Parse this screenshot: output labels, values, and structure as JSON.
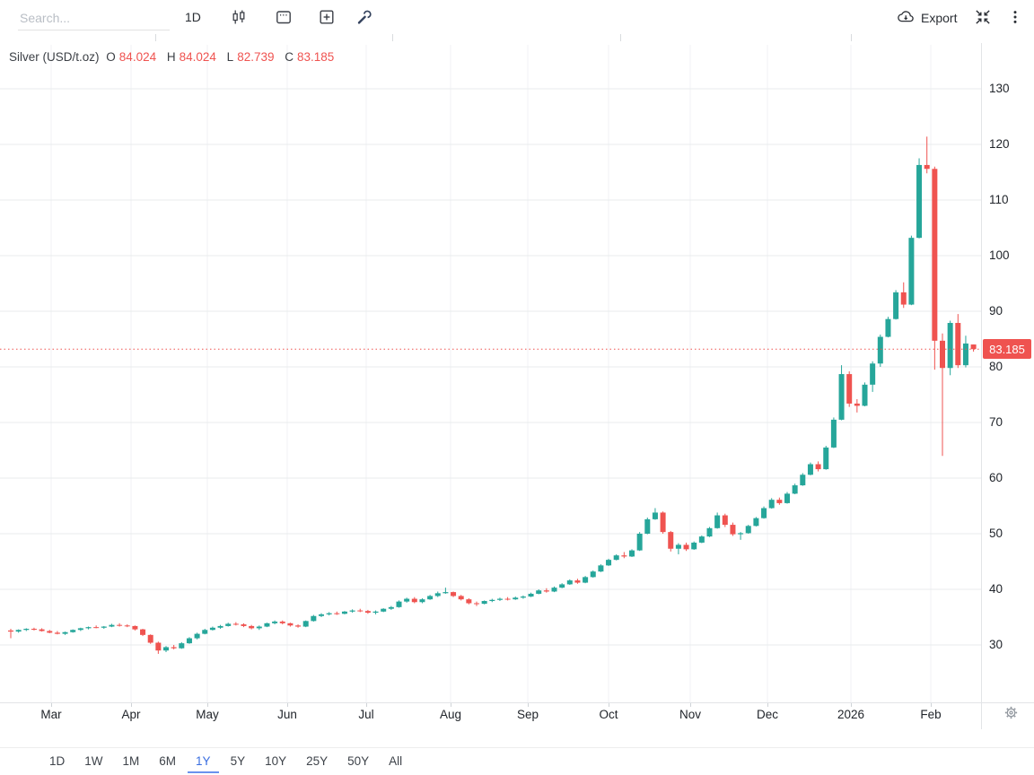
{
  "toolbar": {
    "search_placeholder": "Search...",
    "interval_label": "1D",
    "export_label": "Export"
  },
  "legend": {
    "symbol": "Silver (USD/t.oz)",
    "o_label": "O",
    "open": "84.024",
    "h_label": "H",
    "high": "84.024",
    "l_label": "L",
    "low": "82.739",
    "c_label": "C",
    "close": "83.185"
  },
  "price_label": "83.185",
  "colors": {
    "up": "#26a69a",
    "down": "#ef5350",
    "price_line": "#ef5350",
    "accent_blue": "#3a6ee0",
    "grid_h": "#e9ebed",
    "grid_v": "#f1f2f4"
  },
  "range_tabs": {
    "items": [
      "1D",
      "1W",
      "1M",
      "6M",
      "1Y",
      "5Y",
      "10Y",
      "25Y",
      "50Y",
      "All"
    ],
    "selected": "1Y"
  },
  "chart_data": {
    "type": "candlestick",
    "title": "Silver (USD/t.oz)",
    "interval": "1D",
    "range": "1Y",
    "last_price": 83.185,
    "y_axis": {
      "ticks": [
        130,
        120,
        110,
        100,
        90,
        80,
        70,
        60,
        50,
        40,
        30
      ],
      "min": 26,
      "max": 138
    },
    "x_axis": {
      "labels": [
        "Mar",
        "Apr",
        "May",
        "Jun",
        "Jul",
        "Aug",
        "Sep",
        "Oct",
        "Nov",
        "Dec",
        "2026",
        "Feb"
      ],
      "positions": [
        57,
        146,
        231,
        320,
        408,
        502,
        588,
        678,
        769,
        855,
        948,
        1037
      ]
    },
    "candles_format": [
      "open",
      "high",
      "low",
      "close"
    ],
    "candles": [
      [
        32.6,
        32.9,
        31.2,
        32.4
      ],
      [
        32.4,
        32.8,
        32.2,
        32.7
      ],
      [
        32.7,
        33.0,
        32.5,
        32.9
      ],
      [
        32.9,
        33.1,
        32.6,
        32.8
      ],
      [
        32.8,
        33.0,
        32.4,
        32.5
      ],
      [
        32.5,
        32.7,
        32.1,
        32.2
      ],
      [
        32.2,
        32.5,
        31.9,
        32.0
      ],
      [
        32.0,
        32.4,
        31.8,
        32.3
      ],
      [
        32.3,
        32.8,
        32.2,
        32.7
      ],
      [
        32.7,
        33.1,
        32.5,
        33.0
      ],
      [
        33.0,
        33.3,
        32.8,
        33.2
      ],
      [
        33.2,
        33.5,
        33.0,
        33.1
      ],
      [
        33.1,
        33.4,
        32.9,
        33.3
      ],
      [
        33.3,
        33.8,
        33.2,
        33.6
      ],
      [
        33.6,
        33.9,
        33.3,
        33.5
      ],
      [
        33.5,
        33.7,
        33.2,
        33.4
      ],
      [
        33.4,
        33.5,
        32.6,
        32.8
      ],
      [
        32.8,
        32.9,
        31.6,
        31.8
      ],
      [
        31.8,
        31.9,
        30.2,
        30.4
      ],
      [
        30.4,
        30.6,
        28.4,
        29.0
      ],
      [
        29.0,
        29.8,
        28.7,
        29.6
      ],
      [
        29.6,
        30.0,
        29.2,
        29.4
      ],
      [
        29.4,
        30.5,
        29.3,
        30.3
      ],
      [
        30.3,
        31.4,
        30.2,
        31.2
      ],
      [
        31.2,
        32.2,
        31.0,
        32.0
      ],
      [
        32.0,
        32.9,
        31.9,
        32.7
      ],
      [
        32.7,
        33.3,
        32.6,
        33.1
      ],
      [
        33.1,
        33.6,
        32.9,
        33.4
      ],
      [
        33.4,
        34.0,
        33.3,
        33.8
      ],
      [
        33.8,
        34.1,
        33.5,
        33.7
      ],
      [
        33.7,
        33.9,
        33.2,
        33.4
      ],
      [
        33.4,
        33.6,
        32.8,
        33.0
      ],
      [
        33.0,
        33.5,
        32.7,
        33.3
      ],
      [
        33.3,
        34.0,
        33.2,
        33.9
      ],
      [
        33.9,
        34.4,
        33.7,
        34.2
      ],
      [
        34.2,
        34.4,
        33.7,
        33.9
      ],
      [
        33.9,
        34.0,
        33.3,
        33.5
      ],
      [
        33.5,
        33.7,
        33.1,
        33.3
      ],
      [
        33.3,
        34.4,
        33.2,
        34.3
      ],
      [
        34.3,
        35.4,
        34.2,
        35.2
      ],
      [
        35.2,
        35.7,
        35.0,
        35.5
      ],
      [
        35.5,
        35.9,
        35.3,
        35.7
      ],
      [
        35.7,
        36.0,
        35.4,
        35.6
      ],
      [
        35.6,
        36.1,
        35.5,
        36.0
      ],
      [
        36.0,
        36.4,
        35.8,
        36.2
      ],
      [
        36.2,
        36.5,
        35.9,
        36.1
      ],
      [
        36.1,
        36.3,
        35.6,
        35.8
      ],
      [
        35.8,
        36.2,
        35.5,
        36.0
      ],
      [
        36.0,
        36.6,
        35.9,
        36.5
      ],
      [
        36.5,
        37.0,
        36.3,
        36.8
      ],
      [
        36.8,
        38.0,
        36.7,
        37.8
      ],
      [
        37.8,
        38.5,
        37.6,
        38.3
      ],
      [
        38.3,
        38.6,
        37.5,
        37.7
      ],
      [
        37.7,
        38.4,
        37.5,
        38.2
      ],
      [
        38.2,
        39.0,
        38.1,
        38.8
      ],
      [
        38.8,
        39.6,
        38.6,
        39.3
      ],
      [
        39.3,
        40.3,
        39.2,
        39.5
      ],
      [
        39.5,
        39.6,
        38.6,
        38.8
      ],
      [
        38.8,
        39.0,
        38.0,
        38.2
      ],
      [
        38.2,
        38.4,
        37.3,
        37.5
      ],
      [
        37.5,
        37.8,
        37.0,
        37.4
      ],
      [
        37.4,
        38.0,
        37.3,
        37.9
      ],
      [
        37.9,
        38.3,
        37.7,
        38.1
      ],
      [
        38.1,
        38.5,
        37.9,
        38.3
      ],
      [
        38.3,
        38.6,
        38.0,
        38.2
      ],
      [
        38.2,
        38.7,
        38.1,
        38.5
      ],
      [
        38.5,
        38.9,
        38.3,
        38.7
      ],
      [
        38.7,
        39.4,
        38.6,
        39.2
      ],
      [
        39.2,
        40.0,
        39.1,
        39.8
      ],
      [
        39.8,
        40.2,
        39.4,
        39.6
      ],
      [
        39.6,
        40.5,
        39.5,
        40.3
      ],
      [
        40.3,
        41.1,
        40.2,
        40.9
      ],
      [
        40.9,
        41.8,
        40.8,
        41.6
      ],
      [
        41.6,
        41.9,
        41.0,
        41.2
      ],
      [
        41.2,
        42.4,
        41.1,
        42.2
      ],
      [
        42.2,
        43.4,
        42.1,
        43.2
      ],
      [
        43.2,
        44.5,
        43.1,
        44.3
      ],
      [
        44.3,
        45.5,
        44.2,
        45.3
      ],
      [
        45.3,
        46.3,
        45.2,
        46.1
      ],
      [
        46.1,
        46.7,
        45.6,
        45.9
      ],
      [
        45.9,
        47.2,
        45.8,
        47.0
      ],
      [
        47.0,
        50.3,
        46.9,
        50.0
      ],
      [
        50.0,
        52.9,
        49.9,
        52.6
      ],
      [
        52.6,
        54.6,
        52.5,
        53.8
      ],
      [
        53.8,
        54.0,
        50.0,
        50.3
      ],
      [
        50.3,
        50.5,
        46.8,
        47.3
      ],
      [
        47.3,
        48.3,
        46.3,
        48.0
      ],
      [
        48.0,
        48.4,
        46.9,
        47.2
      ],
      [
        47.2,
        48.6,
        47.1,
        48.4
      ],
      [
        48.4,
        49.7,
        48.3,
        49.5
      ],
      [
        49.5,
        51.2,
        49.4,
        51.0
      ],
      [
        51.0,
        53.8,
        50.9,
        53.3
      ],
      [
        53.3,
        53.6,
        51.2,
        51.6
      ],
      [
        51.6,
        52.0,
        49.6,
        49.9
      ],
      [
        49.9,
        50.3,
        48.9,
        50.1
      ],
      [
        50.1,
        51.6,
        50.0,
        51.4
      ],
      [
        51.4,
        53.0,
        51.3,
        52.8
      ],
      [
        52.8,
        54.9,
        52.7,
        54.6
      ],
      [
        54.6,
        56.4,
        54.5,
        56.1
      ],
      [
        56.1,
        56.5,
        55.2,
        55.5
      ],
      [
        55.5,
        57.5,
        55.4,
        57.2
      ],
      [
        57.2,
        59.0,
        57.1,
        58.7
      ],
      [
        58.7,
        60.9,
        58.6,
        60.6
      ],
      [
        60.6,
        62.8,
        60.5,
        62.5
      ],
      [
        62.5,
        63.0,
        61.2,
        61.6
      ],
      [
        61.6,
        65.8,
        61.5,
        65.5
      ],
      [
        65.5,
        70.9,
        65.4,
        70.5
      ],
      [
        70.5,
        80.3,
        70.4,
        78.7
      ],
      [
        78.7,
        79.2,
        72.8,
        73.4
      ],
      [
        73.4,
        74.2,
        71.8,
        73.0
      ],
      [
        73.0,
        77.2,
        72.9,
        76.8
      ],
      [
        76.8,
        81.0,
        75.5,
        80.6
      ],
      [
        80.6,
        85.8,
        80.0,
        85.4
      ],
      [
        85.4,
        89.0,
        85.3,
        88.6
      ],
      [
        88.6,
        93.8,
        88.5,
        93.4
      ],
      [
        93.4,
        95.2,
        90.6,
        91.2
      ],
      [
        91.2,
        103.6,
        91.1,
        103.2
      ],
      [
        103.2,
        117.5,
        103.1,
        116.3
      ],
      [
        116.3,
        121.4,
        114.8,
        115.6
      ],
      [
        115.6,
        116.0,
        79.5,
        84.7
      ],
      [
        84.7,
        86.0,
        64.0,
        79.8
      ],
      [
        79.8,
        88.3,
        78.5,
        87.9
      ],
      [
        87.9,
        89.5,
        79.8,
        80.3
      ],
      [
        80.3,
        85.6,
        79.9,
        84.2
      ],
      [
        84.024,
        84.024,
        82.739,
        83.185
      ]
    ]
  }
}
